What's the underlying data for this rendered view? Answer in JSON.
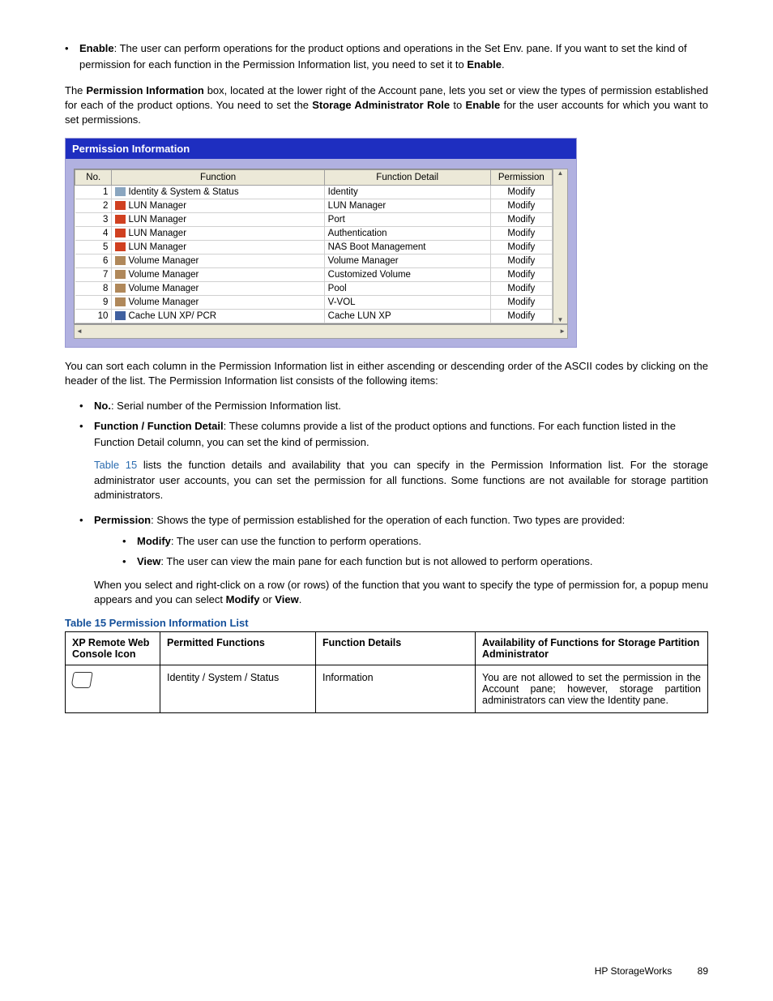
{
  "intro": {
    "enable_label": "Enable",
    "enable_text": ": The user can perform operations for the product options and operations in the Set Env. pane. If you want to set the kind of permission for each function in the Permission Information list, you need to set it to ",
    "enable_word": "Enable",
    "para2_a": "The ",
    "para2_b": "Permission Information",
    "para2_c": " box, located at the lower right of the Account pane, lets you set or view the types of permission established for each of the product options. You need to set the ",
    "para2_d": "Storage Administrator Role",
    "para2_e": " to ",
    "para2_f": "Enable",
    "para2_g": " for the user accounts for which you want to set permissions."
  },
  "panel": {
    "title": "Permission Information",
    "headers": {
      "no": "No.",
      "func": "Function",
      "detail": "Function Detail",
      "perm": "Permission"
    },
    "colors": {
      "header_bg": "#1e2ec0",
      "panel_bg": "#b1b1e0",
      "cell_bg": "#ffffff",
      "th_bg": "#ece9d8"
    },
    "rows": [
      {
        "n": "1",
        "f": "Identity & System & Status",
        "d": "Identity",
        "p": "Modify",
        "ic": "#8aa6c0"
      },
      {
        "n": "2",
        "f": "LUN Manager",
        "d": "LUN Manager",
        "p": "Modify",
        "ic": "#d04020"
      },
      {
        "n": "3",
        "f": "LUN Manager",
        "d": "Port",
        "p": "Modify",
        "ic": "#d04020"
      },
      {
        "n": "4",
        "f": "LUN Manager",
        "d": "Authentication",
        "p": "Modify",
        "ic": "#d04020"
      },
      {
        "n": "5",
        "f": "LUN Manager",
        "d": "NAS Boot Management",
        "p": "Modify",
        "ic": "#d04020"
      },
      {
        "n": "6",
        "f": "Volume Manager",
        "d": "Volume Manager",
        "p": "Modify",
        "ic": "#b0885a"
      },
      {
        "n": "7",
        "f": "Volume Manager",
        "d": "Customized Volume",
        "p": "Modify",
        "ic": "#b0885a"
      },
      {
        "n": "8",
        "f": "Volume Manager",
        "d": "Pool",
        "p": "Modify",
        "ic": "#b0885a"
      },
      {
        "n": "9",
        "f": "Volume Manager",
        "d": "V-VOL",
        "p": "Modify",
        "ic": "#b0885a"
      },
      {
        "n": "10",
        "f": "Cache LUN XP/ PCR",
        "d": "Cache LUN XP",
        "p": "Modify",
        "ic": "#4060a0"
      }
    ]
  },
  "after_panel": "You can sort each column in the Permission Information list in either ascending or descending order of the ASCII codes by clicking on the header of the list. The Permission Information list consists of the following items:",
  "items": {
    "no_b": "No.",
    "no_t": ": Serial number of the Permission Information list.",
    "fn_b": "Function / Function Detail",
    "fn_t": ": These columns provide a list of the product options and functions. For each function listed in the Function Detail column, you can set the kind of permission.",
    "t15_link": "Table 15",
    "t15_rest": " lists the function details and availability that you can specify in the Permission Information list. For the storage administrator user accounts, you can set the permission for all functions. Some functions are not available for storage partition administrators.",
    "perm_b": "Permission",
    "perm_t": ": Shows the type of permission established for the operation of each function. Two types are provided:",
    "modify_b": "Modify",
    "modify_t": ": The user can use the function to perform operations.",
    "view_b": "View",
    "view_t": ": The user can view the main pane for each function but is not allowed to perform operations.",
    "closing_a": "When you select and right-click on a row (or rows) of the function that you want to specify the type of permission for, a popup menu appears and you can select ",
    "closing_m": "Modify",
    "closing_or": " or ",
    "closing_v": "View",
    "closing_end": "."
  },
  "table15": {
    "caption": "Table 15 Permission Information List",
    "headers": {
      "c0": "XP Remote Web Console Icon",
      "c1": "Permitted Functions",
      "c2": "Function Details",
      "c3": "Availability of Functions for Storage Partition Administrator"
    },
    "row": {
      "c1": "Identity / System / Status",
      "c2": "Information",
      "c3": "You are not allowed to set the permission in the Account pane; however, storage partition administrators can view the Identity pane."
    }
  },
  "footer": {
    "brand": "HP StorageWorks",
    "page": "89"
  }
}
